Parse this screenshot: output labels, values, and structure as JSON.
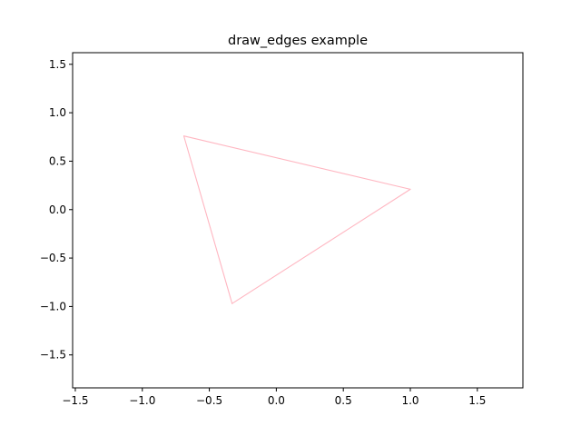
{
  "chart_data": {
    "type": "line",
    "title": "draw_edges example",
    "xlabel": "",
    "ylabel": "",
    "xlim": [
      -1.52,
      1.84
    ],
    "ylim": [
      -1.84,
      1.62
    ],
    "grid": false,
    "xticks": [
      -1.5,
      -1.0,
      -0.5,
      0.0,
      0.5,
      1.0,
      1.5
    ],
    "xtick_labels": [
      "−1.5",
      "−1.0",
      "−0.5",
      "0.0",
      "0.5",
      "1.0",
      "1.5"
    ],
    "yticks": [
      1.5,
      1.0,
      0.5,
      0.0,
      -0.5,
      -1.0,
      -1.5
    ],
    "ytick_labels": [
      "1.5",
      "1.0",
      "0.5",
      "0.0",
      "−0.5",
      "−1.0",
      "−1.5"
    ],
    "edge_color": "#ffb6c1",
    "series": [
      {
        "x": [
          -0.69,
          1.0,
          -0.33,
          -0.69
        ],
        "y": [
          0.76,
          0.21,
          -0.97,
          0.76
        ]
      }
    ]
  }
}
